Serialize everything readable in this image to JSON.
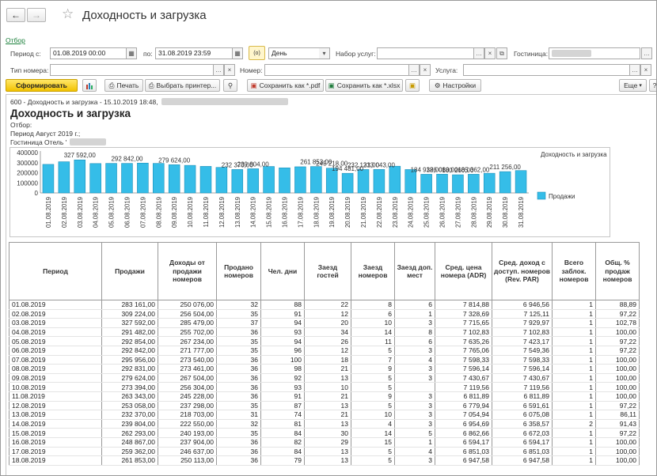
{
  "window": {
    "title": "Доходность и загрузка"
  },
  "filter": {
    "link": "Отбор",
    "period_from_label": "Период с:",
    "period_from": "01.08.2019 00:00",
    "period_to_label": "по:",
    "period_to": "31.08.2019 23:59",
    "period_mode_icon": "(o)",
    "granularity": "День",
    "services_set_label": "Набор услуг:",
    "hotel_label": "Гостиница:",
    "room_type_label": "Тип номера:",
    "room_label": "Номер:",
    "service_label": "Услуга:"
  },
  "toolbar": {
    "generate": "Сформировать",
    "print": "Печать",
    "choose_printer": "Выбрать принтер...",
    "save_pdf": "Сохранить как *.pdf",
    "save_xlsx": "Сохранить как *.xlsx",
    "settings": "Настройки",
    "more": "Еще",
    "help": "?"
  },
  "report": {
    "header_line": "600 - Доходность и загрузка - 15.10.2019 18:48,",
    "title": "Доходность и загрузка",
    "filter_label": "Отбор:",
    "period_line": "Период Август 2019 г.;",
    "hotel_line": "Гостиница Отель '"
  },
  "chart_data": {
    "type": "bar",
    "title": "Доходность и загрузка",
    "legend": [
      "Продажи"
    ],
    "legend_position": "right",
    "categories": [
      "01.08.2019",
      "02.08.2019",
      "03.08.2019",
      "04.08.2019",
      "05.08.2019",
      "06.08.2019",
      "07.08.2019",
      "08.08.2019",
      "09.08.2019",
      "10.08.2019",
      "11.08.2019",
      "12.08.2019",
      "13.08.2019",
      "14.08.2019",
      "15.08.2019",
      "16.08.2019",
      "17.08.2019",
      "18.08.2019",
      "19.08.2019",
      "20.08.2019",
      "21.08.2019",
      "22.08.2019",
      "23.08.2019",
      "24.08.2019",
      "25.08.2019",
      "26.08.2019",
      "27.08.2019",
      "28.08.2019",
      "29.08.2019",
      "30.08.2019",
      "31.08.2019"
    ],
    "values": [
      283161,
      309224,
      327592,
      291482,
      292854,
      292842,
      295956,
      292831,
      279624,
      273394,
      263343,
      253058,
      232370,
      239804,
      262293,
      248867,
      259362,
      261853,
      245218,
      194481,
      232131,
      233043,
      265000,
      232000,
      184932,
      186080,
      180260,
      185362,
      195000,
      211256,
      222000
    ],
    "labels": [
      {
        "index": 2,
        "text": "327 592,00"
      },
      {
        "index": 5,
        "text": "292 842,00"
      },
      {
        "index": 8,
        "text": "279 624,00"
      },
      {
        "index": 12,
        "text": "232 370,00"
      },
      {
        "index": 13,
        "text": "239 804,00"
      },
      {
        "index": 17,
        "text": "261 853,00"
      },
      {
        "index": 18,
        "text": "245 218,00"
      },
      {
        "index": 19,
        "text": "194 481,00"
      },
      {
        "index": 20,
        "text": "232 131,00"
      },
      {
        "index": 21,
        "text": "233 043,00"
      },
      {
        "index": 24,
        "text": "184 932,00"
      },
      {
        "index": 25,
        "text": "186 080,00"
      },
      {
        "index": 26,
        "text": "180 260,00"
      },
      {
        "index": 27,
        "text": "185 362,00"
      },
      {
        "index": 29,
        "text": "211 256,00"
      }
    ],
    "y_ticks": [
      "400000",
      "300000",
      "200000",
      "100000",
      "0"
    ],
    "ylim": [
      0,
      400000
    ]
  },
  "table": {
    "columns": [
      "Период",
      "Продажи",
      "Доходы от продажи номеров",
      "Продано номеров",
      "Чел. дни",
      "Заезд гостей",
      "Заезд номеров",
      "Заезд доп. мест",
      "Сред. цена номера (ADR)",
      "Сред. доход с доступ. номеров (Rev. PAR)",
      "Всего заблок. номеров",
      "Общ. % продаж номеров"
    ],
    "rows": [
      [
        "01.08.2019",
        "283 161,00",
        "250 076,00",
        "32",
        "88",
        "22",
        "8",
        "6",
        "7 814,88",
        "6 946,56",
        "1",
        "88,89"
      ],
      [
        "02.08.2019",
        "309 224,00",
        "256 504,00",
        "35",
        "91",
        "12",
        "6",
        "1",
        "7 328,69",
        "7 125,11",
        "1",
        "97,22"
      ],
      [
        "03.08.2019",
        "327 592,00",
        "285 479,00",
        "37",
        "94",
        "20",
        "10",
        "3",
        "7 715,65",
        "7 929,97",
        "1",
        "102,78"
      ],
      [
        "04.08.2019",
        "291 482,00",
        "255 702,00",
        "36",
        "93",
        "34",
        "14",
        "8",
        "7 102,83",
        "7 102,83",
        "1",
        "100,00"
      ],
      [
        "05.08.2019",
        "292 854,00",
        "267 234,00",
        "35",
        "94",
        "26",
        "11",
        "6",
        "7 635,26",
        "7 423,17",
        "1",
        "97,22"
      ],
      [
        "06.08.2019",
        "292 842,00",
        "271 777,00",
        "35",
        "96",
        "12",
        "5",
        "3",
        "7 765,06",
        "7 549,36",
        "1",
        "97,22"
      ],
      [
        "07.08.2019",
        "295 956,00",
        "273 540,00",
        "36",
        "100",
        "18",
        "7",
        "4",
        "7 598,33",
        "7 598,33",
        "1",
        "100,00"
      ],
      [
        "08.08.2019",
        "292 831,00",
        "273 461,00",
        "36",
        "98",
        "21",
        "9",
        "3",
        "7 596,14",
        "7 596,14",
        "1",
        "100,00"
      ],
      [
        "09.08.2019",
        "279 624,00",
        "267 504,00",
        "36",
        "92",
        "13",
        "5",
        "3",
        "7 430,67",
        "7 430,67",
        "1",
        "100,00"
      ],
      [
        "10.08.2019",
        "273 394,00",
        "256 304,00",
        "36",
        "93",
        "10",
        "5",
        "",
        "7 119,56",
        "7 119,56",
        "1",
        "100,00"
      ],
      [
        "11.08.2019",
        "263 343,00",
        "245 228,00",
        "36",
        "91",
        "21",
        "9",
        "3",
        "6 811,89",
        "6 811,89",
        "1",
        "100,00"
      ],
      [
        "12.08.2019",
        "253 058,00",
        "237 298,00",
        "35",
        "87",
        "13",
        "5",
        "3",
        "6 779,94",
        "6 591,61",
        "1",
        "97,22"
      ],
      [
        "13.08.2019",
        "232 370,00",
        "218 703,00",
        "31",
        "74",
        "21",
        "10",
        "3",
        "7 054,94",
        "6 075,08",
        "1",
        "86,11"
      ],
      [
        "14.08.2019",
        "239 804,00",
        "222 550,00",
        "32",
        "81",
        "13",
        "4",
        "3",
        "6 954,69",
        "6 358,57",
        "2",
        "91,43"
      ],
      [
        "15.08.2019",
        "262 293,00",
        "240 193,00",
        "35",
        "84",
        "30",
        "14",
        "5",
        "6 862,66",
        "6 672,03",
        "1",
        "97,22"
      ],
      [
        "16.08.2019",
        "248 867,00",
        "237 904,00",
        "36",
        "82",
        "29",
        "15",
        "1",
        "6 594,17",
        "6 594,17",
        "1",
        "100,00"
      ],
      [
        "17.08.2019",
        "259 362,00",
        "246 637,00",
        "36",
        "84",
        "13",
        "5",
        "4",
        "6 851,03",
        "6 851,03",
        "1",
        "100,00"
      ],
      [
        "18.08.2019",
        "261 853,00",
        "250 113,00",
        "36",
        "79",
        "13",
        "5",
        "3",
        "6 947,58",
        "6 947,58",
        "1",
        "100,00"
      ]
    ]
  }
}
